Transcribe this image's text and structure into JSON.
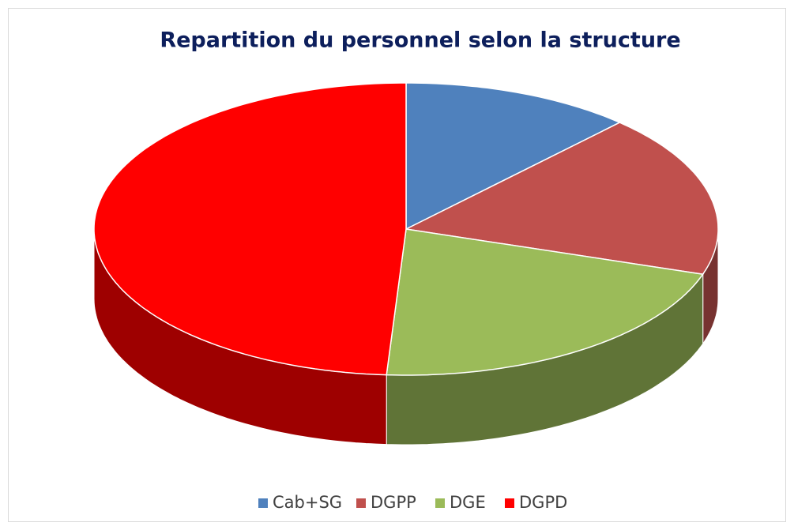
{
  "chart_data": {
    "type": "pie",
    "title": "Repartition du personnel selon la structure",
    "categories": [
      "Cab+SG",
      "DGPP",
      "DGE",
      "DGPD"
    ],
    "values": [
      12,
      18,
      21,
      49
    ],
    "colors": [
      "#4f81bd",
      "#c0504d",
      "#9bbb59",
      "#ff0000"
    ],
    "legend": "bottom"
  }
}
